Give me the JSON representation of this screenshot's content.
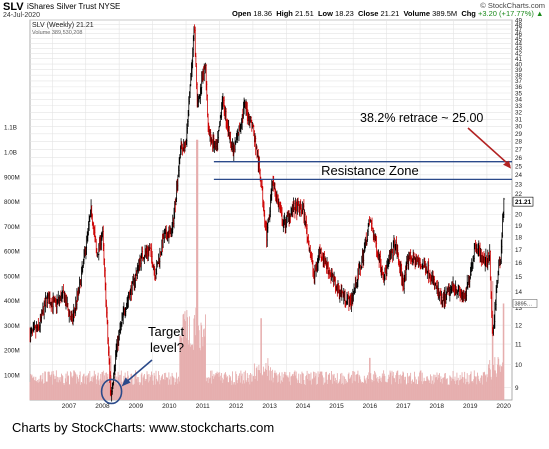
{
  "header": {
    "symbol": "SLV",
    "name": "iShares Silver Trust NYSE",
    "date": "24-Jul-2020",
    "open_label": "Open",
    "open": "18.36",
    "high_label": "High",
    "high": "21.51",
    "low_label": "Low",
    "low": "18.23",
    "close_label": "Close",
    "close": "21.21",
    "volume_label": "Volume",
    "volume": "389.5M",
    "chg_label": "Chg",
    "chg": "+3.20 (+17.77%)",
    "chg_arrow": "▲",
    "brand": "© StockCharts.com"
  },
  "footer": {
    "text": "Charts by StockCharts:  www.stockcharts.com"
  },
  "colors": {
    "up_bar": "#000000",
    "down_bar": "#cc0000",
    "volume": "#e6aeae",
    "resistance": "#2b4a8a",
    "annotation_arrow": "#b22222",
    "target_arrow": "#2b4a8a",
    "grid": "#e4e4e4"
  },
  "chart_data": {
    "type": "ohlc",
    "title": "SLV (Weekly) 21.21",
    "subtitle": "Volume 389,530,208",
    "scale": "log",
    "ylim": [
      8.5,
      49
    ],
    "y_ticks": [
      9,
      10,
      11,
      12,
      13,
      14,
      15,
      16,
      17,
      18,
      19,
      20,
      21,
      22,
      23,
      24,
      25,
      26,
      27,
      28,
      29,
      30,
      31,
      32,
      33,
      34,
      35,
      36,
      37,
      38,
      39,
      40,
      41,
      42,
      43,
      44,
      45,
      46,
      47,
      48,
      49
    ],
    "last_price_label": "21.21",
    "x_ticks": [
      "2007",
      "2008",
      "2009",
      "2010",
      "2011",
      "2012",
      "2013",
      "2014",
      "2015",
      "2016",
      "2017",
      "2018",
      "2019",
      "2020"
    ],
    "price_series": [
      {
        "x": "2006-05",
        "y": 11.5
      },
      {
        "x": "2006-08",
        "y": 11.8
      },
      {
        "x": "2006-11",
        "y": 13.6
      },
      {
        "x": "2007-02",
        "y": 13.2
      },
      {
        "x": "2007-05",
        "y": 13.8
      },
      {
        "x": "2007-08",
        "y": 12.2
      },
      {
        "x": "2007-11",
        "y": 14.5
      },
      {
        "x": "2008-03",
        "y": 20.5
      },
      {
        "x": "2008-05",
        "y": 16.5
      },
      {
        "x": "2008-07",
        "y": 18.5
      },
      {
        "x": "2008-09",
        "y": 11.0
      },
      {
        "x": "2008-10",
        "y": 8.6
      },
      {
        "x": "2008-12",
        "y": 10.8
      },
      {
        "x": "2009-03",
        "y": 13.0
      },
      {
        "x": "2009-06",
        "y": 14.5
      },
      {
        "x": "2009-09",
        "y": 16.5
      },
      {
        "x": "2009-12",
        "y": 17.0
      },
      {
        "x": "2010-02",
        "y": 15.2
      },
      {
        "x": "2010-05",
        "y": 18.0
      },
      {
        "x": "2010-08",
        "y": 18.5
      },
      {
        "x": "2010-11",
        "y": 27.0
      },
      {
        "x": "2011-01",
        "y": 27.5
      },
      {
        "x": "2011-04",
        "y": 47.5
      },
      {
        "x": "2011-05",
        "y": 33.0
      },
      {
        "x": "2011-08",
        "y": 40.0
      },
      {
        "x": "2011-09",
        "y": 29.0
      },
      {
        "x": "2011-12",
        "y": 27.0
      },
      {
        "x": "2012-02",
        "y": 34.0
      },
      {
        "x": "2012-06",
        "y": 26.5
      },
      {
        "x": "2012-10",
        "y": 33.0
      },
      {
        "x": "2013-01",
        "y": 30.0
      },
      {
        "x": "2013-04",
        "y": 23.0
      },
      {
        "x": "2013-06",
        "y": 18.0
      },
      {
        "x": "2013-08",
        "y": 23.5
      },
      {
        "x": "2013-12",
        "y": 19.0
      },
      {
        "x": "2014-03",
        "y": 20.5
      },
      {
        "x": "2014-07",
        "y": 20.5
      },
      {
        "x": "2014-11",
        "y": 15.0
      },
      {
        "x": "2015-01",
        "y": 17.0
      },
      {
        "x": "2015-07",
        "y": 14.3
      },
      {
        "x": "2015-12",
        "y": 13.3
      },
      {
        "x": "2016-04",
        "y": 16.0
      },
      {
        "x": "2016-07",
        "y": 19.5
      },
      {
        "x": "2016-12",
        "y": 15.0
      },
      {
        "x": "2017-04",
        "y": 17.5
      },
      {
        "x": "2017-07",
        "y": 14.5
      },
      {
        "x": "2017-09",
        "y": 16.5
      },
      {
        "x": "2018-04",
        "y": 15.5
      },
      {
        "x": "2018-09",
        "y": 13.3
      },
      {
        "x": "2019-01",
        "y": 14.5
      },
      {
        "x": "2019-05",
        "y": 13.5
      },
      {
        "x": "2019-09",
        "y": 17.5
      },
      {
        "x": "2019-12",
        "y": 16.0
      },
      {
        "x": "2020-02",
        "y": 16.5
      },
      {
        "x": "2020-03",
        "y": 11.2
      },
      {
        "x": "2020-05",
        "y": 15.5
      },
      {
        "x": "2020-06",
        "y": 16.5
      },
      {
        "x": "2020-07",
        "y": 21.21
      }
    ],
    "volume": {
      "name": "Volume",
      "ticks": [
        "100M",
        "200M",
        "300M",
        "400M",
        "500M",
        "600M",
        "700M",
        "800M",
        "900M",
        "1.0B",
        "1.1B"
      ],
      "ylim": [
        0,
        1150000000
      ],
      "last_label": "389530208",
      "spikes": [
        {
          "x": "2008-10",
          "y": 180000000
        },
        {
          "x": "2010-11",
          "y": 260000000
        },
        {
          "x": "2011-05",
          "y": 1050000000
        },
        {
          "x": "2013-04",
          "y": 330000000
        },
        {
          "x": "2016-07",
          "y": 170000000
        },
        {
          "x": "2020-03",
          "y": 480000000
        },
        {
          "x": "2020-07",
          "y": 389530208
        }
      ]
    },
    "annotations": [
      {
        "text": "38.2% retrace ~ 25.00"
      },
      {
        "text": "Resistance Zone",
        "band": [
          23.5,
          25.5
        ]
      },
      {
        "text": "Target level?",
        "at": {
          "x": "2008-11",
          "y": 8.8
        }
      }
    ]
  }
}
